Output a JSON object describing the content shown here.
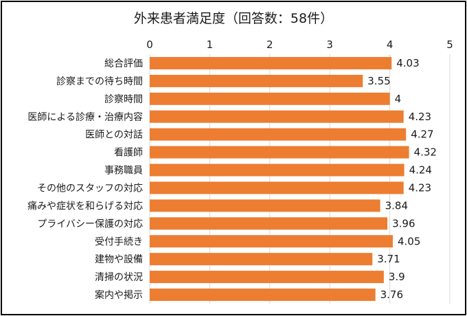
{
  "chart_data": {
    "type": "bar",
    "orientation": "horizontal",
    "title": "外来患者満足度（回答数：58件）",
    "categories": [
      "総合評価",
      "診察までの待ち時間",
      "診察時間",
      "医師による診療・治療内容",
      "医師との対話",
      "看護師",
      "事務職員",
      "その他のスタッフの対応",
      "痛みや症状を和らげる対応",
      "プライバシー保護の対応",
      "受付手続き",
      "建物や設備",
      "清掃の状況",
      "案内や掲示"
    ],
    "values": [
      4.03,
      3.55,
      4,
      4.23,
      4.27,
      4.32,
      4.24,
      4.23,
      3.84,
      3.96,
      4.05,
      3.71,
      3.9,
      3.76
    ],
    "value_labels": [
      "4.03",
      "3.55",
      "4",
      "4.23",
      "4.27",
      "4.32",
      "4.24",
      "4.23",
      "3.84",
      "3.96",
      "4.05",
      "3.71",
      "3.9",
      "3.76"
    ],
    "xlim": [
      0,
      5
    ],
    "ticks": [
      "0",
      "1",
      "2",
      "3",
      "4",
      "5"
    ],
    "axis_position": "top",
    "grid": true,
    "legend": "none",
    "bar_color": "#ED7D31",
    "grid_color": "#D9D9D9"
  }
}
